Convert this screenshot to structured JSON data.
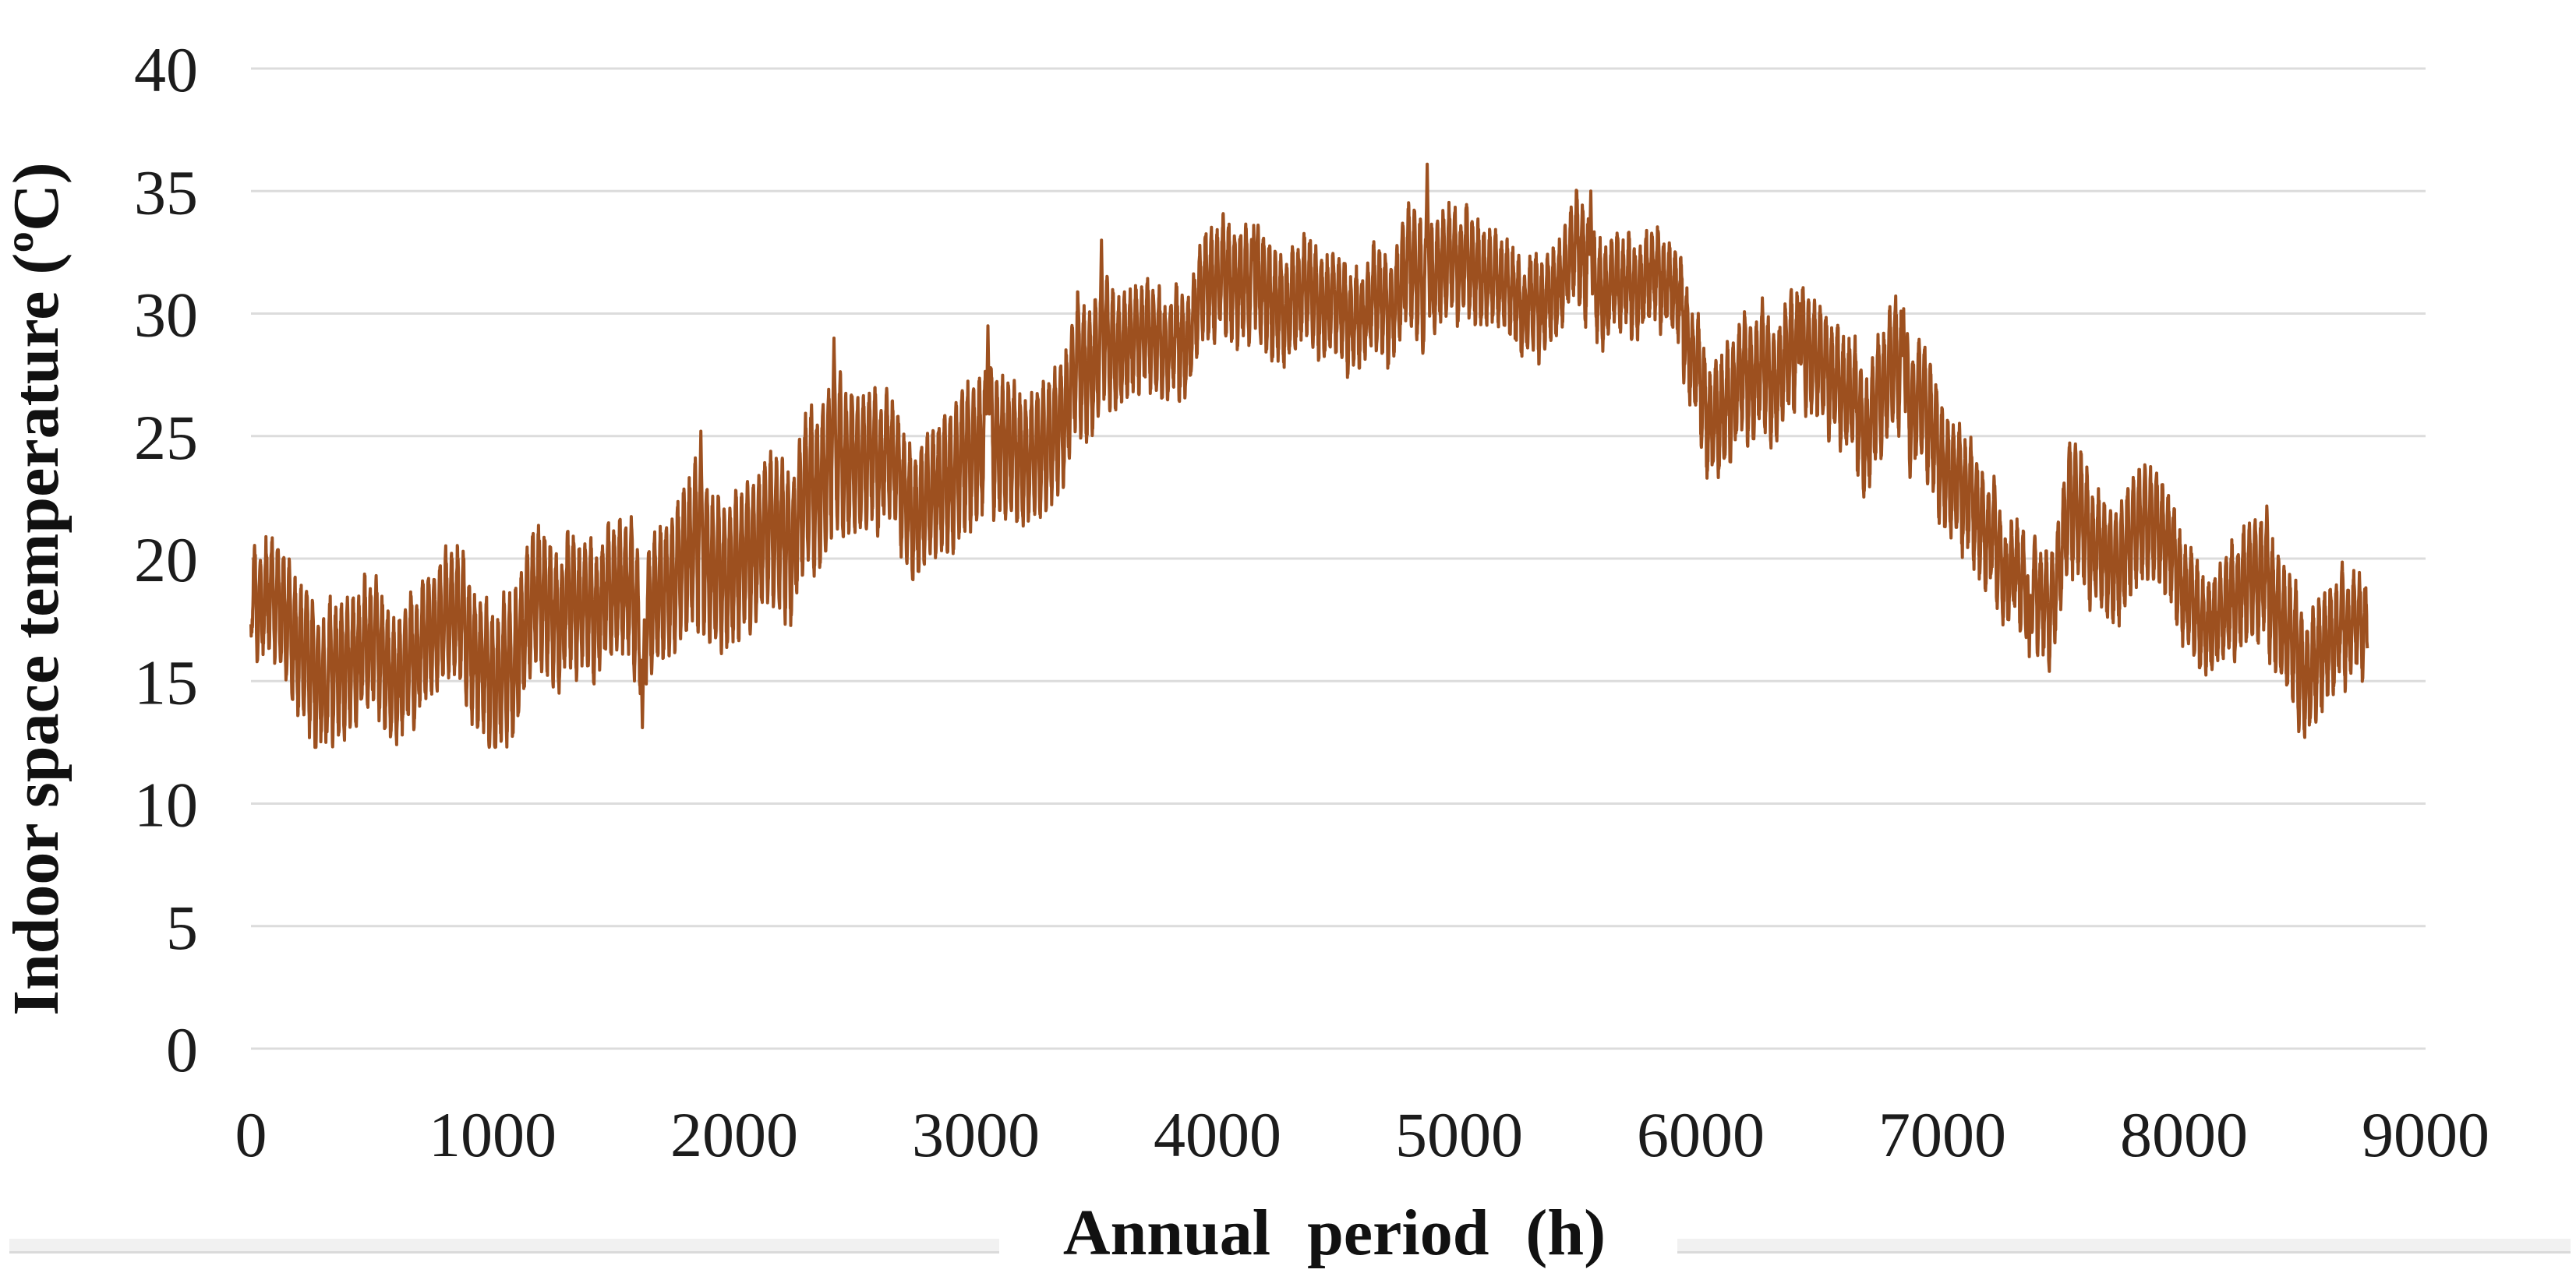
{
  "figure": {
    "kind": "scientific-figure-line-chart",
    "background": "#ffffff"
  },
  "chart_data": {
    "type": "line",
    "title": "",
    "xlabel": "Annual period (h)",
    "ylabel": "Indoor space temperature (ºC)",
    "xlim": [
      0,
      9000
    ],
    "ylim": [
      0,
      40
    ],
    "x_ticks": [
      0,
      1000,
      2000,
      3000,
      4000,
      5000,
      6000,
      7000,
      8000,
      9000
    ],
    "y_ticks": [
      0,
      5,
      10,
      15,
      20,
      25,
      30,
      35,
      40
    ],
    "grid": "horizontal-only",
    "legend": "none",
    "series": [
      {
        "name": "Indoor space temperature",
        "color": "#9D501F",
        "sampling": "hourly",
        "hours": 8760,
        "min_value_c": 12.5,
        "max_value_c": 36.1,
        "seasonal_envelope_mean_amp": [
          [
            0,
            18.8,
            1.8
          ],
          [
            60,
            17.6,
            2.2
          ],
          [
            150,
            16.9,
            2.4
          ],
          [
            280,
            15.4,
            2.7
          ],
          [
            380,
            15.9,
            2.6
          ],
          [
            500,
            16.6,
            2.3
          ],
          [
            650,
            17.1,
            2.3
          ],
          [
            800,
            16.9,
            2.4
          ],
          [
            950,
            16.8,
            2.5
          ],
          [
            1070,
            15.9,
            2.8
          ],
          [
            1200,
            17.3,
            2.5
          ],
          [
            1320,
            18.4,
            2.4
          ],
          [
            1450,
            17.9,
            2.4
          ],
          [
            1600,
            16.9,
            2.6
          ],
          [
            1750,
            18.0,
            2.6
          ],
          [
            1870,
            20.2,
            3.0
          ],
          [
            1990,
            19.3,
            2.8
          ],
          [
            2120,
            20.6,
            2.7
          ],
          [
            2250,
            21.8,
            2.8
          ],
          [
            2400,
            24.0,
            3.1
          ],
          [
            2520,
            22.0,
            2.6
          ],
          [
            2650,
            22.6,
            2.2
          ],
          [
            2780,
            21.6,
            2.4
          ],
          [
            2900,
            21.2,
            2.7
          ],
          [
            3000,
            23.8,
            2.7
          ],
          [
            3100,
            24.8,
            2.6
          ],
          [
            3250,
            25.1,
            2.3
          ],
          [
            3400,
            28.2,
            2.6
          ],
          [
            3520,
            29.8,
            2.4
          ],
          [
            3650,
            27.9,
            2.0
          ],
          [
            3800,
            28.4,
            1.8
          ],
          [
            3950,
            29.6,
            1.9
          ],
          [
            4100,
            30.6,
            2.2
          ],
          [
            4250,
            30.0,
            2.0
          ],
          [
            4400,
            29.6,
            1.9
          ],
          [
            4550,
            30.1,
            1.7
          ],
          [
            4700,
            30.7,
            1.8
          ],
          [
            4850,
            32.2,
            2.4
          ],
          [
            4970,
            31.2,
            2.0
          ],
          [
            5100,
            30.6,
            1.8
          ],
          [
            5250,
            29.4,
            1.6
          ],
          [
            5400,
            29.9,
            1.7
          ],
          [
            5540,
            31.8,
            2.0
          ],
          [
            5700,
            30.4,
            1.6
          ],
          [
            5850,
            30.6,
            1.6
          ],
          [
            5960,
            29.6,
            1.7
          ],
          [
            6060,
            26.5,
            2.2
          ],
          [
            6180,
            27.4,
            2.1
          ],
          [
            6320,
            28.4,
            2.2
          ],
          [
            6440,
            28.6,
            2.1
          ],
          [
            6550,
            26.9,
            2.1
          ],
          [
            6680,
            25.2,
            2.2
          ],
          [
            6800,
            26.9,
            2.4
          ],
          [
            6920,
            25.8,
            2.3
          ],
          [
            7060,
            23.9,
            2.2
          ],
          [
            7180,
            22.2,
            2.0
          ],
          [
            7320,
            19.4,
            1.8
          ],
          [
            7440,
            19.0,
            1.9
          ],
          [
            7540,
            22.3,
            2.5
          ],
          [
            7650,
            20.3,
            2.0
          ],
          [
            7760,
            20.9,
            2.3
          ],
          [
            7870,
            19.6,
            2.1
          ],
          [
            7990,
            17.4,
            1.8
          ],
          [
            8120,
            17.2,
            1.7
          ],
          [
            8250,
            18.3,
            2.2
          ],
          [
            8330,
            19.0,
            2.4
          ],
          [
            8450,
            17.0,
            2.3
          ],
          [
            8540,
            15.8,
            2.2
          ],
          [
            8650,
            16.9,
            1.9
          ],
          [
            8760,
            17.9,
            1.6
          ]
        ],
        "peak_events_hour_c": [
          [
            1862,
            25.2
          ],
          [
            2413,
            29.0
          ],
          [
            3050,
            29.5
          ],
          [
            3520,
            33.0
          ],
          [
            4150,
            33.6
          ],
          [
            4868,
            36.1
          ],
          [
            5545,
            35.0
          ],
          [
            6410,
            30.4
          ],
          [
            6840,
            30.2
          ]
        ],
        "low_events_hour_c": [
          [
            310,
            12.5
          ],
          [
            1085,
            12.9
          ],
          [
            1620,
            13.1
          ],
          [
            7360,
            16.0
          ],
          [
            8520,
            13.5
          ]
        ]
      }
    ]
  },
  "styles": {
    "grid_color": "#dcdcdc",
    "text_color": "#1c1c1c",
    "series_color": "#9D501F",
    "artifact_bar_color": "#f1f1f1"
  }
}
